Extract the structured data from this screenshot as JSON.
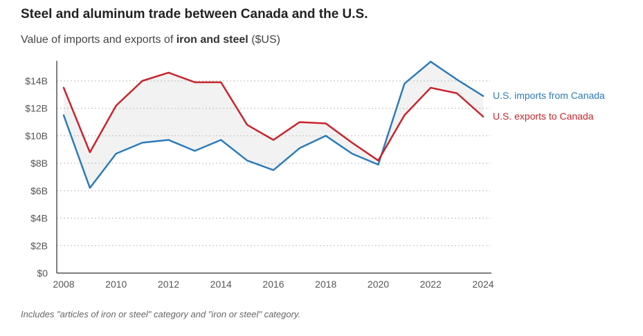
{
  "chart_data": {
    "type": "line",
    "title": "Steel and aluminum trade between Canada and the U.S.",
    "subtitle_prefix": "Value of imports and exports of",
    "subtitle_bold": "iron and steel",
    "subtitle_suffix": "($US)",
    "note": "Includes \"articles of iron or steel\" category and \"iron or steel\" category.",
    "x": [
      2008,
      2009,
      2010,
      2011,
      2012,
      2013,
      2014,
      2015,
      2016,
      2017,
      2018,
      2019,
      2020,
      2021,
      2022,
      2023,
      2024
    ],
    "x_ticks": [
      "2008",
      "2010",
      "2012",
      "2014",
      "2016",
      "2018",
      "2020",
      "2022",
      "2024"
    ],
    "y_ticks": [
      "$0",
      "$2B",
      "$4B",
      "$6B",
      "$8B",
      "$10B",
      "$12B",
      "$14B"
    ],
    "ylim": [
      0,
      15.5
    ],
    "y_unit": "billion USD",
    "grid": true,
    "series": [
      {
        "name": "U.S. imports from Canada",
        "color": "#2b7bb9",
        "values": [
          11.5,
          6.2,
          8.7,
          9.5,
          9.7,
          8.9,
          9.7,
          8.2,
          7.5,
          9.1,
          10.0,
          8.7,
          7.9,
          13.8,
          15.4,
          14.1,
          12.9
        ]
      },
      {
        "name": "U.S. exports to Canada",
        "color": "#c8242b",
        "values": [
          13.5,
          8.8,
          12.2,
          14.0,
          14.6,
          13.9,
          13.9,
          10.8,
          9.7,
          11.0,
          10.9,
          9.5,
          8.2,
          11.5,
          13.5,
          13.1,
          11.4
        ]
      }
    ],
    "colors": {
      "gap_fill": "#f2f2f2",
      "gridline": "#bbbbbb",
      "axis": "#555555",
      "tick_label": "#555555"
    }
  }
}
